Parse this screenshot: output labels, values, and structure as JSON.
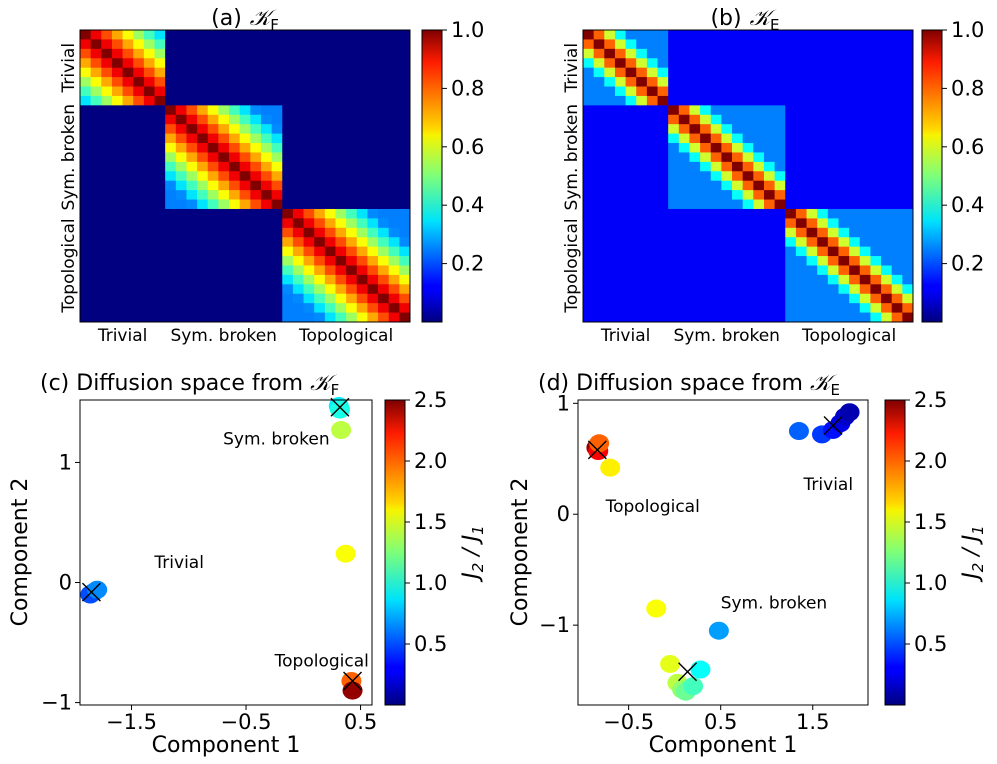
{
  "chart_data": [
    {
      "panel": "a",
      "type": "heatmap",
      "title_prefix": "(a)",
      "title_kernel": "𝒦",
      "title_sub": "F",
      "phases": [
        "Trivial",
        "Sym. broken",
        "Topological"
      ],
      "phase_sizes": [
        8,
        11,
        12
      ],
      "off_diag_value": 0.0,
      "diag_block_decay": 0.09,
      "colorbar": {
        "ticks": [
          "1.0",
          "0.8",
          "0.6",
          "0.4",
          "0.2"
        ],
        "tick_values": [
          1.0,
          0.8,
          0.6,
          0.4,
          0.2
        ],
        "range": [
          0.0,
          1.0
        ]
      }
    },
    {
      "panel": "b",
      "type": "heatmap",
      "title_prefix": "(b)",
      "title_kernel": "𝒦",
      "title_sub": "E",
      "phases": [
        "Trivial",
        "Sym. broken",
        "Topological"
      ],
      "phase_sizes": [
        8,
        11,
        12
      ],
      "off_diag_value": 0.12,
      "diag_block_decay": 0.2,
      "colorbar": {
        "ticks": [
          "1.0",
          "0.8",
          "0.6",
          "0.4",
          "0.2"
        ],
        "tick_values": [
          1.0,
          0.8,
          0.6,
          0.4,
          0.2
        ],
        "range": [
          0.0,
          1.0
        ]
      }
    },
    {
      "panel": "c",
      "type": "scatter",
      "title_text": "(c) Diffusion space from ",
      "title_kernel": "𝒦",
      "title_sub": "F",
      "xlabel": "Component 1",
      "ylabel": "Component 2",
      "xlim": [
        -1.95,
        0.6
      ],
      "ylim": [
        -1.02,
        1.52
      ],
      "xticks": [
        -1.5,
        -0.5,
        0.5
      ],
      "xtick_labels": [
        "−1.5",
        "−0.5",
        "0.5"
      ],
      "yticks": [
        -1,
        0,
        1
      ],
      "ytick_labels": [
        "−1",
        "0",
        "1"
      ],
      "annotations": [
        {
          "text": "Sym. broken",
          "x": -0.7,
          "y": 1.15
        },
        {
          "text": "Trivial",
          "x": -1.3,
          "y": 0.12
        },
        {
          "text": "Topological",
          "x": -0.25,
          "y": -0.7
        }
      ],
      "points": [
        {
          "x": -1.83,
          "y": -0.08,
          "c": 0.6
        },
        {
          "x": -1.86,
          "y": -0.1,
          "c": 0.5
        },
        {
          "x": -1.8,
          "y": -0.06,
          "c": 0.65
        },
        {
          "x": 0.31,
          "y": 1.47,
          "c": 0.9
        },
        {
          "x": 0.32,
          "y": 1.44,
          "c": 1.0
        },
        {
          "x": 0.33,
          "y": 1.27,
          "c": 1.4
        },
        {
          "x": 0.37,
          "y": 0.24,
          "c": 1.55
        },
        {
          "x": 0.42,
          "y": -0.82,
          "c": 1.95
        },
        {
          "x": 0.43,
          "y": -0.9,
          "c": 2.45
        }
      ],
      "markers": [
        {
          "x": -1.85,
          "y": -0.08
        },
        {
          "x": 0.32,
          "y": 1.46
        },
        {
          "x": 0.43,
          "y": -0.82
        }
      ],
      "colorbar": {
        "label": "J2 / J1",
        "ticks": [
          "2.5",
          "2.0",
          "1.5",
          "1.0",
          "0.5"
        ],
        "tick_values": [
          2.5,
          2.0,
          1.5,
          1.0,
          0.5
        ],
        "range": [
          0.0,
          2.5
        ]
      }
    },
    {
      "panel": "d",
      "type": "scatter",
      "title_text": "(d) Diffusion space from ",
      "title_kernel": "𝒦",
      "title_sub": "E",
      "xlabel": "Component 1",
      "ylabel": "Component 2",
      "xlim": [
        -1.05,
        2.1
      ],
      "ylim": [
        -1.72,
        1.03
      ],
      "xticks": [
        -0.5,
        0.5,
        1.5
      ],
      "xtick_labels": [
        "−0.5",
        "0.5",
        "1.5"
      ],
      "yticks": [
        -1,
        0,
        1
      ],
      "ytick_labels": [
        "−1",
        "0",
        "1"
      ],
      "annotations": [
        {
          "text": "Topological",
          "x": -0.75,
          "y": 0.02
        },
        {
          "text": "Trivial",
          "x": 1.4,
          "y": 0.22
        },
        {
          "text": "Sym. broken",
          "x": 0.5,
          "y": -0.85
        }
      ],
      "points": [
        {
          "x": -0.85,
          "y": 0.6,
          "c": 2.45
        },
        {
          "x": -0.83,
          "y": 0.57,
          "c": 2.2
        },
        {
          "x": -0.82,
          "y": 0.64,
          "c": 1.95
        },
        {
          "x": -0.7,
          "y": 0.42,
          "c": 1.6
        },
        {
          "x": -0.2,
          "y": -0.85,
          "c": 1.55
        },
        {
          "x": -0.05,
          "y": -1.35,
          "c": 1.5
        },
        {
          "x": 0.03,
          "y": -1.52,
          "c": 1.4
        },
        {
          "x": 0.08,
          "y": -1.58,
          "c": 1.3
        },
        {
          "x": 0.12,
          "y": -1.6,
          "c": 1.2
        },
        {
          "x": 0.2,
          "y": -1.55,
          "c": 1.1
        },
        {
          "x": 0.28,
          "y": -1.4,
          "c": 0.95
        },
        {
          "x": 0.48,
          "y": -1.05,
          "c": 0.7
        },
        {
          "x": 1.35,
          "y": 0.75,
          "c": 0.55
        },
        {
          "x": 1.6,
          "y": 0.72,
          "c": 0.45
        },
        {
          "x": 1.72,
          "y": 0.76,
          "c": 0.35
        },
        {
          "x": 1.8,
          "y": 0.82,
          "c": 0.25
        },
        {
          "x": 1.85,
          "y": 0.88,
          "c": 0.18
        },
        {
          "x": 1.9,
          "y": 0.92,
          "c": 0.12
        }
      ],
      "markers": [
        {
          "x": -0.84,
          "y": 0.58
        },
        {
          "x": 0.14,
          "y": -1.42
        },
        {
          "x": 1.72,
          "y": 0.8
        }
      ],
      "colorbar": {
        "label": "J2 / J1",
        "ticks": [
          "2.5",
          "2.0",
          "1.5",
          "1.0",
          "0.5"
        ],
        "tick_values": [
          2.5,
          2.0,
          1.5,
          1.0,
          0.5
        ],
        "range": [
          0.0,
          2.5
        ]
      }
    }
  ]
}
